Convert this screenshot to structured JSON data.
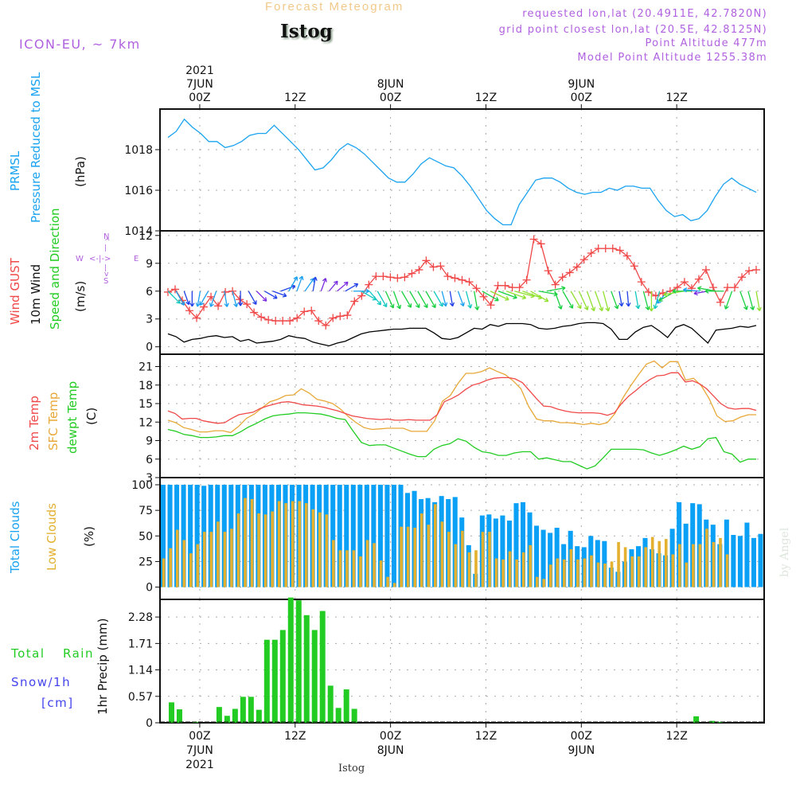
{
  "header": {
    "title": "Forecast Meteogram",
    "station": "Istog",
    "model": "ICON-EU, ~ 7km",
    "requested": "requested lon,lat (20.4911E, 42.7820N)",
    "gridpoint": "grid point closest lon,lat (20.5E, 42.8125N)",
    "point_altitude": "Point Altitude 477m",
    "model_altitude": "Model Point Altitude 1255.38m"
  },
  "time_axis": {
    "top_ticks": [
      {
        "label": "00Z",
        "date": "7JUN",
        "year": "2021",
        "hour": 0
      },
      {
        "label": "12Z",
        "date": "",
        "year": "",
        "hour": 12
      },
      {
        "label": "00Z",
        "date": "8JUN",
        "year": "",
        "hour": 24
      },
      {
        "label": "12Z",
        "date": "",
        "year": "",
        "hour": 36
      },
      {
        "label": "00Z",
        "date": "9JUN",
        "year": "",
        "hour": 48
      },
      {
        "label": "12Z",
        "date": "",
        "year": "",
        "hour": 60
      }
    ],
    "start_hour": -5,
    "end_hour": 71
  },
  "footer": {
    "station": "Istog",
    "watermark": "by Angel"
  },
  "panels": {
    "pressure": {
      "labels": [
        "PRMSL",
        "Pressure Reduced to MSL",
        "(hPa)"
      ],
      "color": "#1aa3f0",
      "yticks": [
        "1014",
        "1016",
        "1018"
      ]
    },
    "wind": {
      "labels": [
        "Wind GUST",
        "10m Wind",
        "Speed and Direction",
        "(m/s)"
      ],
      "compass": {
        "n": "N",
        "s": "S",
        "e": "E",
        "w": "W"
      },
      "yticks": [
        "0",
        "3",
        "6",
        "9",
        "12"
      ],
      "gust_color": "#f04848",
      "wind_color": "#000000"
    },
    "temp": {
      "labels": [
        "2m Temp",
        "SFC Temp",
        "dewpt Temp",
        "(C)"
      ],
      "colors": {
        "t2m": "#f04848",
        "sfc": "#e8a838",
        "dewpt": "#22cc22"
      },
      "yticks": [
        "3",
        "6",
        "9",
        "12",
        "15",
        "18",
        "21"
      ]
    },
    "clouds": {
      "labels": [
        "Total Clouds",
        "Low Clouds",
        "(%)"
      ],
      "colors": {
        "total": "#0aa0f5",
        "low": "#e3b030"
      },
      "yticks": [
        "0",
        "25",
        "50",
        "75",
        "100"
      ]
    },
    "precip": {
      "labels": [
        "Total",
        "Rain",
        "Snow/1h",
        "[cm]",
        "1hr Precip (mm)"
      ],
      "colors": {
        "rain": "#22cc22",
        "snow": "#4444ee"
      },
      "yticks": [
        "0",
        "0.57",
        "1.14",
        "1.71",
        "2.28"
      ]
    }
  },
  "chart_data": [
    {
      "type": "line",
      "title": "PRMSL Pressure Reduced to MSL",
      "ylabel": "hPa",
      "ylim": [
        1014,
        1020
      ],
      "x_hours_start": -4,
      "x_step_hours": 1,
      "series": [
        {
          "name": "PRMSL",
          "values": [
            1018.6,
            1018.9,
            1019.5,
            1019.1,
            1018.8,
            1018.4,
            1018.4,
            1018.1,
            1018.2,
            1018.4,
            1018.7,
            1018.8,
            1018.8,
            1019.2,
            1018.8,
            1018.4,
            1018.0,
            1017.5,
            1017.0,
            1017.1,
            1017.5,
            1018.0,
            1018.3,
            1018.1,
            1017.8,
            1017.4,
            1017.0,
            1016.6,
            1016.4,
            1016.4,
            1016.8,
            1017.3,
            1017.6,
            1017.4,
            1017.2,
            1017.1,
            1016.7,
            1016.2,
            1015.6,
            1015.0,
            1014.6,
            1014.3,
            1014.3,
            1015.3,
            1015.9,
            1016.5,
            1016.6,
            1016.6,
            1016.4,
            1016.1,
            1015.9,
            1015.8,
            1015.9,
            1015.9,
            1016.1,
            1016.0,
            1016.2,
            1016.2,
            1016.1,
            1016.1,
            1015.5,
            1015.0,
            1014.7,
            1014.8,
            1014.5,
            1014.6,
            1015.0,
            1015.7,
            1016.3,
            1016.6,
            1016.3,
            1016.1,
            1015.9
          ]
        }
      ]
    },
    {
      "type": "line",
      "title": "Wind GUST / 10m Wind Speed and Direction",
      "ylabel": "m/s",
      "ylim": [
        0,
        12
      ],
      "x_hours_start": -4,
      "x_step_hours": 1,
      "series": [
        {
          "name": "Wind GUST",
          "values": [
            5.9,
            6.2,
            5.0,
            3.9,
            3.1,
            4.3,
            5.4,
            4.4,
            5.9,
            6.0,
            5.1,
            4.6,
            3.7,
            3.2,
            2.9,
            2.8,
            2.8,
            2.8,
            3.1,
            3.8,
            3.9,
            2.8,
            2.3,
            3.1,
            3.3,
            3.4,
            4.9,
            5.5,
            6.7,
            7.6,
            7.6,
            7.5,
            7.4,
            7.5,
            7.9,
            8.3,
            9.3,
            8.6,
            8.7,
            7.6,
            7.4,
            7.2,
            7.0,
            6.3,
            5.4,
            4.5,
            6.6,
            6.6,
            6.4,
            6.4,
            7.2,
            11.6,
            11.1,
            8.2,
            6.7,
            7.5,
            8.0,
            8.6,
            9.4,
            10.1,
            10.6,
            10.6,
            10.6,
            10.4,
            9.8,
            8.7,
            7.0,
            5.9,
            5.5,
            5.8,
            6.0,
            6.4,
            7.0,
            6.3,
            7.3,
            8.3,
            6.4,
            4.8,
            6.4,
            6.4,
            7.5,
            8.2,
            8.3
          ]
        },
        {
          "name": "10m Wind",
          "values": [
            1.4,
            1.1,
            0.5,
            0.8,
            0.9,
            1.1,
            1.2,
            1.0,
            1.1,
            0.6,
            0.8,
            0.4,
            0.5,
            0.6,
            0.8,
            1.2,
            1.0,
            0.9,
            0.5,
            0.3,
            0.1,
            0.4,
            0.6,
            1.0,
            1.4,
            1.6,
            1.7,
            1.8,
            1.9,
            1.9,
            2.0,
            2.0,
            2.0,
            1.5,
            0.9,
            0.8,
            1.0,
            1.5,
            2.0,
            1.9,
            2.4,
            2.2,
            2.5,
            2.5,
            2.5,
            2.4,
            2.0,
            1.9,
            2.0,
            2.2,
            2.3,
            2.5,
            2.6,
            2.6,
            2.5,
            1.9,
            0.8,
            0.8,
            1.6,
            2.1,
            2.3,
            1.7,
            1.0,
            2.1,
            2.4,
            2.0,
            1.2,
            0.4,
            1.8,
            1.9,
            2.0,
            2.2,
            2.1,
            2.3
          ]
        },
        {
          "name": "Wind direction (arrows, deg from)",
          "values": [
            315,
            330,
            340,
            0,
            10,
            30,
            20,
            350,
            345,
            0,
            330,
            315,
            300,
            290,
            250,
            210,
            200,
            215,
            190,
            200,
            220,
            230,
            240,
            270,
            300,
            320,
            330,
            335,
            340,
            330,
            330,
            330,
            330,
            330,
            345,
            350,
            340,
            345,
            350,
            300,
            295,
            290,
            290,
            285,
            290,
            300,
            280,
            260,
            340,
            330,
            330,
            335,
            340,
            340,
            345,
            340,
            350,
            355,
            350,
            345,
            0,
            15,
            40,
            60,
            80,
            90,
            95,
            80,
            100,
            90,
            20,
            340,
            345,
            350
          ]
        }
      ]
    },
    {
      "type": "line",
      "title": "Temperatures",
      "ylabel": "C",
      "ylim": [
        3,
        23
      ],
      "x_hours_start": -4,
      "x_step_hours": 1,
      "series": [
        {
          "name": "2m Temp",
          "values": [
            13.8,
            13.4,
            12.5,
            12.6,
            12.6,
            12.2,
            12.0,
            11.8,
            11.9,
            12.6,
            13.2,
            13.4,
            13.6,
            14.2,
            14.6,
            14.9,
            15.2,
            15.3,
            15.1,
            14.8,
            14.7,
            14.6,
            14.4,
            14.1,
            13.8,
            13.4,
            13.0,
            12.8,
            12.6,
            12.5,
            12.4,
            12.5,
            12.3,
            12.3,
            12.4,
            12.3,
            12.3,
            12.3,
            13.2,
            15.3,
            15.8,
            16.4,
            17.3,
            18.0,
            18.3,
            18.8,
            19.1,
            19.2,
            19.2,
            19.0,
            18.4,
            17.1,
            15.8,
            14.6,
            14.5,
            14.1,
            13.8,
            13.6,
            13.5,
            13.5,
            13.5,
            13.4,
            13.1,
            13.5,
            15.0,
            16.2,
            17.1,
            18.1,
            18.9,
            19.5,
            19.6,
            20.0,
            20.0,
            18.5,
            18.7,
            18.2,
            17.4,
            16.2,
            15.0,
            14.3,
            14.1,
            14.2,
            14.2,
            13.9
          ]
        },
        {
          "name": "SFC Temp",
          "values": [
            12.3,
            11.9,
            11.1,
            10.8,
            10.4,
            10.4,
            10.6,
            10.6,
            10.3,
            11.3,
            12.6,
            13.3,
            14.3,
            15.3,
            15.7,
            16.3,
            16.4,
            17.4,
            16.7,
            15.7,
            15.4,
            15.0,
            14.1,
            12.9,
            11.9,
            11.1,
            10.8,
            10.9,
            11.0,
            11.0,
            11.0,
            10.5,
            10.5,
            10.5,
            12.2,
            15.4,
            16.3,
            18.3,
            19.9,
            19.9,
            20.2,
            20.8,
            20.2,
            19.7,
            18.7,
            17.4,
            14.5,
            12.5,
            12.2,
            12.2,
            11.9,
            11.9,
            11.8,
            11.6,
            11.8,
            11.6,
            11.9,
            13.4,
            15.9,
            17.9,
            19.7,
            21.4,
            21.9,
            20.8,
            21.8,
            21.8,
            18.8,
            19.1,
            17.9,
            15.8,
            13.0,
            12.1,
            12.2,
            12.8,
            13.2,
            13.2
          ]
        },
        {
          "name": "dewpt Temp",
          "values": [
            10.8,
            10.5,
            10.0,
            9.8,
            9.5,
            9.5,
            9.6,
            9.8,
            9.8,
            10.4,
            11.2,
            11.8,
            12.5,
            13.0,
            13.2,
            13.3,
            13.5,
            13.5,
            13.4,
            13.3,
            13.0,
            12.6,
            12.4,
            10.5,
            8.7,
            8.2,
            8.3,
            8.3,
            7.8,
            7.3,
            6.8,
            6.4,
            6.4,
            7.6,
            8.2,
            8.5,
            9.3,
            8.9,
            7.9,
            7.2,
            7.0,
            6.6,
            6.6,
            7.0,
            7.2,
            7.2,
            6.0,
            6.2,
            5.9,
            5.6,
            5.6,
            5.0,
            4.4,
            4.9,
            6.2,
            7.6,
            7.6,
            7.6,
            7.6,
            7.5,
            7.0,
            6.6,
            7.0,
            7.5,
            8.1,
            7.6,
            8.0,
            9.3,
            9.5,
            7.2,
            6.8,
            5.5,
            6.0,
            6.0
          ]
        }
      ]
    },
    {
      "type": "bar",
      "title": "Total Clouds / Low Clouds",
      "ylabel": "%",
      "ylim": [
        0,
        100
      ],
      "x_hours_start": -5,
      "x_step_hours": 1,
      "series": [
        {
          "name": "Total Clouds",
          "values": [
            100,
            100,
            100,
            100,
            100,
            100,
            99,
            100,
            100,
            100,
            100,
            100,
            100,
            100,
            100,
            100,
            100,
            100,
            100,
            100,
            100,
            100,
            100,
            100,
            100,
            100,
            100,
            100,
            100,
            100,
            100,
            100,
            100,
            100,
            100,
            100,
            92,
            94,
            86,
            87,
            83,
            89,
            86,
            88,
            68,
            41,
            13,
            70,
            71,
            67,
            70,
            65,
            82,
            83,
            73,
            60,
            56,
            53,
            58,
            42,
            55,
            40,
            39,
            50,
            46,
            45,
            19,
            15,
            25,
            37,
            40,
            48,
            37,
            33,
            31,
            57,
            83,
            62,
            82,
            81,
            66,
            61,
            42,
            66,
            51,
            50,
            63,
            48,
            52
          ]
        },
        {
          "name": "Low Clouds",
          "values": [
            28,
            38,
            56,
            46,
            33,
            42,
            54,
            54,
            64,
            54,
            57,
            72,
            87,
            86,
            72,
            71,
            74,
            84,
            82,
            84,
            84,
            82,
            76,
            73,
            71,
            46,
            36,
            36,
            36,
            30,
            46,
            43,
            26,
            10,
            4,
            59,
            59,
            58,
            72,
            61,
            81,
            64,
            54,
            42,
            55,
            34,
            36,
            54,
            54,
            28,
            27,
            35,
            27,
            34,
            41,
            10,
            8,
            22,
            28,
            27,
            37,
            27,
            28,
            31,
            24,
            23,
            25,
            44,
            39,
            30,
            30,
            39,
            49,
            45,
            47,
            32,
            42,
            24,
            42,
            42,
            57,
            44,
            48,
            32
          ]
        }
      ]
    },
    {
      "type": "bar",
      "title": "1hr Precip",
      "ylabel": "1hr Precip (mm)",
      "ylim": [
        0,
        2.6
      ],
      "x_hours_start": -5,
      "x_step_hours": 1,
      "series": [
        {
          "name": "Total Rain",
          "values": [
            0,
            0.44,
            0.29,
            0,
            0.02,
            0,
            0,
            0.34,
            0.15,
            0.3,
            0.56,
            0.56,
            0.28,
            1.79,
            1.79,
            2.0,
            2.7,
            2.64,
            2.32,
            2.0,
            2.41,
            0.8,
            0.32,
            0.72,
            0.3,
            0,
            0,
            0,
            0,
            0,
            0,
            0,
            0,
            0,
            0,
            0,
            0,
            0,
            0,
            0,
            0,
            0,
            0,
            0,
            0,
            0,
            0,
            0,
            0,
            0,
            0,
            0,
            0,
            0,
            0,
            0,
            0,
            0,
            0,
            0,
            0,
            0,
            0,
            0,
            0,
            0,
            0,
            0.14,
            0,
            0.04,
            0.02,
            0,
            0,
            0,
            0,
            0
          ]
        },
        {
          "name": "Snow/1h",
          "values": []
        }
      ]
    }
  ]
}
